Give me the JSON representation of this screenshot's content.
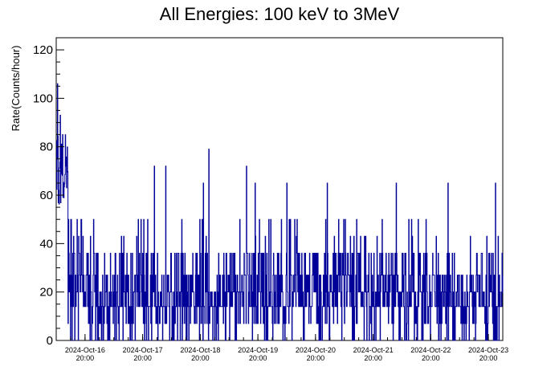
{
  "chart_data": {
    "type": "line",
    "title": "All Energies:  100 keV to 3MeV",
    "xlabel": "",
    "ylabel": "Rate(Counts/hour)",
    "ylim": [
      0,
      125
    ],
    "yticks": [
      0,
      20,
      40,
      60,
      80,
      100,
      120
    ],
    "xlim": [
      0,
      7.75
    ],
    "xtick_labels": [
      {
        "date": "2024-Oct-16",
        "time": "20:00"
      },
      {
        "date": "2024-Oct-17",
        "time": "20:00"
      },
      {
        "date": "2024-Oct-18",
        "time": "20:00"
      },
      {
        "date": "2024-Oct-19",
        "time": "20:00"
      },
      {
        "date": "2024-Oct-20",
        "time": "20:00"
      },
      {
        "date": "2024-Oct-21",
        "time": "20:00"
      },
      {
        "date": "2024-Oct-22",
        "time": "20:00"
      },
      {
        "date": "2024-Oct-23",
        "time": "20:00"
      }
    ],
    "grid": false,
    "series": [
      {
        "color": "#000099",
        "x_start": 0,
        "x_end": 7.75,
        "typical_range": [
          7,
          36
        ],
        "peaks": [
          {
            "x": 0.02,
            "y": 106
          },
          {
            "x": 0.07,
            "y": 93
          },
          {
            "x": 0.11,
            "y": 85
          },
          {
            "x": 0.16,
            "y": 72
          },
          {
            "x": 1.7,
            "y": 72
          },
          {
            "x": 1.9,
            "y": 72
          },
          {
            "x": 2.55,
            "y": 65
          },
          {
            "x": 2.65,
            "y": 79
          },
          {
            "x": 3.3,
            "y": 72
          },
          {
            "x": 3.45,
            "y": 65
          },
          {
            "x": 4.0,
            "y": 65
          },
          {
            "x": 4.7,
            "y": 65
          },
          {
            "x": 5.9,
            "y": 65
          },
          {
            "x": 6.8,
            "y": 65
          },
          {
            "x": 7.62,
            "y": 65
          }
        ]
      }
    ]
  }
}
